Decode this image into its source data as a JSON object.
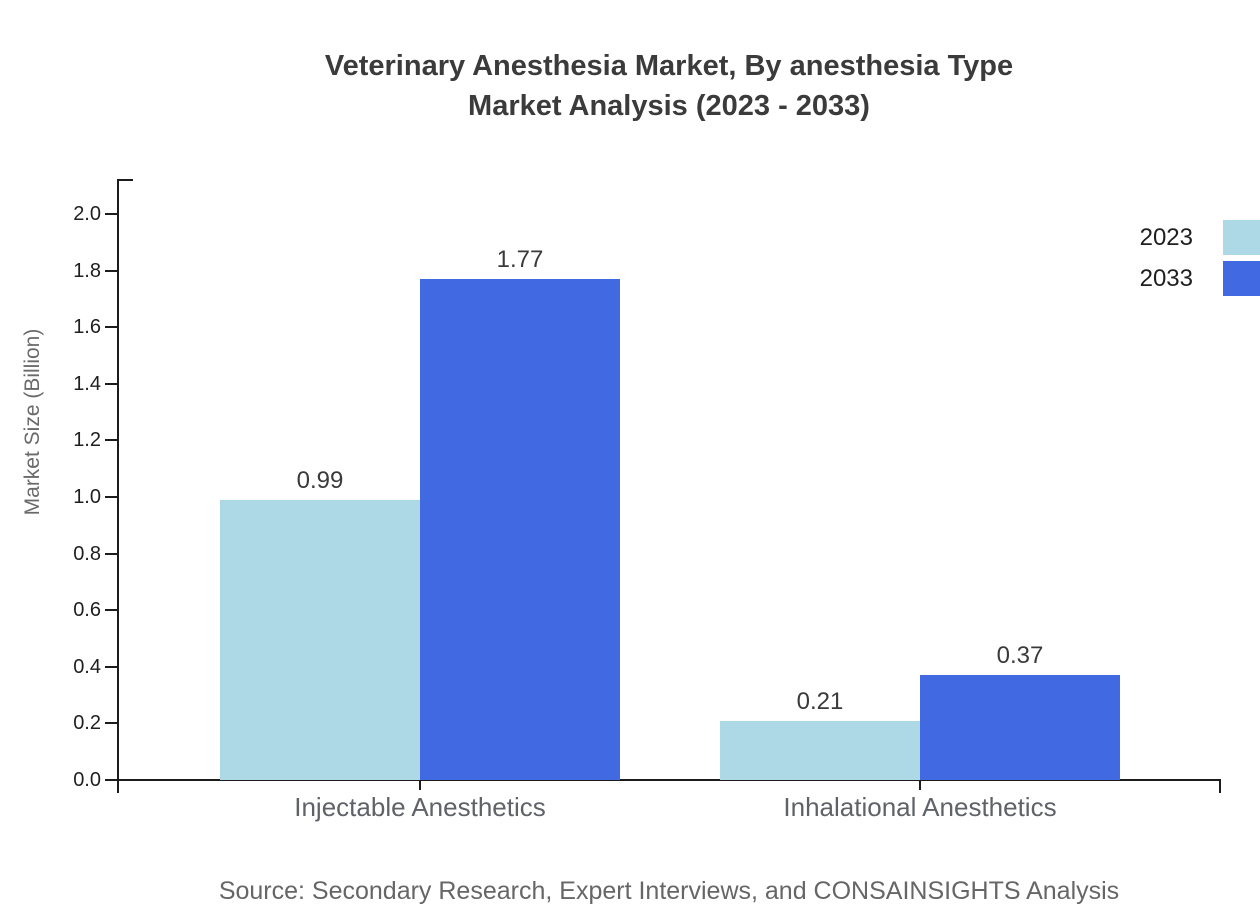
{
  "title": {
    "line1": "Veterinary Anesthesia Market, By anesthesia Type",
    "line2": "Market Analysis (2023 - 2033)"
  },
  "chart_data": {
    "type": "bar",
    "categories": [
      "Injectable Anesthetics",
      "Inhalational Anesthetics"
    ],
    "series": [
      {
        "name": "2023",
        "color": "#ADD8E6",
        "values": [
          0.99,
          0.21
        ]
      },
      {
        "name": "2033",
        "color": "#4169E1",
        "values": [
          1.77,
          0.37
        ]
      }
    ],
    "ylabel": "Market Size (Billion)",
    "xlabel": "",
    "ylim": [
      0.0,
      2.12
    ],
    "yticks": [
      0.0,
      0.2,
      0.4,
      0.6,
      0.8,
      1.0,
      1.2,
      1.4,
      1.6,
      1.8,
      2.0
    ],
    "ytick_decimals": 1,
    "value_label_decimals": 2,
    "grid": false,
    "legend_position": "top-right",
    "value_labels_shown": [
      "0.99",
      "1.77",
      "0.21",
      "0.37"
    ]
  },
  "source": "Source: Secondary Research, Expert Interviews, and CONSAINSIGHTS Analysis",
  "colors": {
    "series_2023": "#ADD8E6",
    "series_2033": "#4169E1",
    "axis": "#1c1c1c",
    "title_text": "#3b3b3b",
    "muted_text": "#666666"
  }
}
